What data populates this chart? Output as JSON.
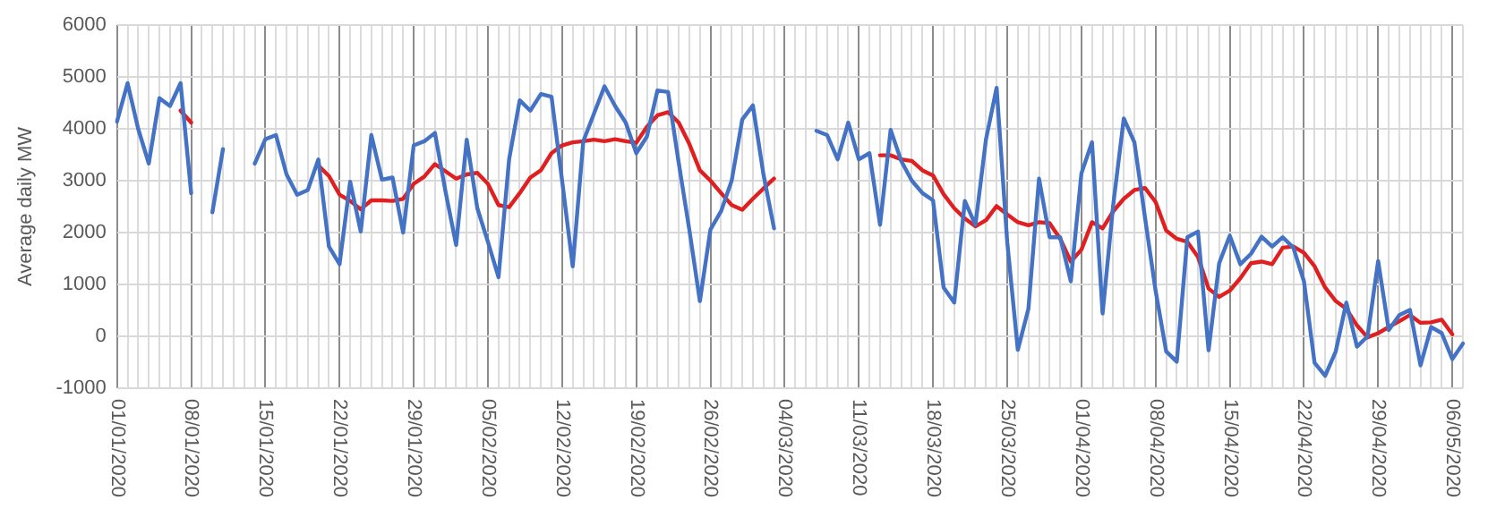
{
  "chart_data": {
    "type": "line",
    "ylabel": "Average daily MW",
    "ylim": [
      -1000,
      6000
    ],
    "yticks": [
      -1000,
      0,
      1000,
      2000,
      3000,
      4000,
      5000,
      6000
    ],
    "grid": true,
    "categories": [
      "01/01/2020",
      null,
      null,
      null,
      null,
      null,
      null,
      "08/01/2020",
      null,
      null,
      null,
      null,
      null,
      null,
      "15/01/2020",
      null,
      null,
      null,
      null,
      null,
      null,
      "22/01/2020",
      null,
      null,
      null,
      null,
      null,
      null,
      "29/01/2020",
      null,
      null,
      null,
      null,
      null,
      null,
      "05/02/2020",
      null,
      null,
      null,
      null,
      null,
      null,
      "12/02/2020",
      null,
      null,
      null,
      null,
      null,
      null,
      "19/02/2020",
      null,
      null,
      null,
      null,
      null,
      null,
      "26/02/2020",
      null,
      null,
      null,
      null,
      null,
      null,
      "04/03/2020",
      null,
      null,
      null,
      null,
      null,
      null,
      "11/03/2020",
      null,
      null,
      null,
      null,
      null,
      null,
      "18/03/2020",
      null,
      null,
      null,
      null,
      null,
      null,
      "25/03/2020",
      null,
      null,
      null,
      null,
      null,
      null,
      "01/04/2020",
      null,
      null,
      null,
      null,
      null,
      null,
      "08/04/2020",
      null,
      null,
      null,
      null,
      null,
      null,
      "15/04/2020",
      null,
      null,
      null,
      null,
      null,
      null,
      "22/04/2020",
      null,
      null,
      null,
      null,
      null,
      null,
      "29/04/2020",
      null,
      null,
      null,
      null,
      null,
      null,
      "06/05/2020",
      null
    ],
    "series": [
      {
        "color": "#4472c4",
        "values": [
          4140,
          4880,
          4000,
          3330,
          4590,
          4440,
          4880,
          2760,
          null,
          2390,
          3610,
          null,
          null,
          3330,
          3800,
          3880,
          3120,
          2730,
          2820,
          3410,
          1730,
          1390,
          2980,
          2020,
          3880,
          3020,
          3060,
          2000,
          3680,
          3760,
          3920,
          2790,
          1760,
          3790,
          2470,
          1820,
          1140,
          3410,
          4550,
          4350,
          4670,
          4620,
          3000,
          1350,
          3760,
          4290,
          4820,
          4440,
          4120,
          3530,
          3850,
          4740,
          4710,
          3350,
          2060,
          680,
          2060,
          2410,
          3000,
          4180,
          4450,
          3120,
          2080,
          null,
          null,
          null,
          3960,
          3880,
          3410,
          4120,
          3410,
          3530,
          2150,
          3980,
          3380,
          3000,
          2760,
          2620,
          940,
          650,
          2610,
          2150,
          3800,
          4790,
          1820,
          -260,
          530,
          3040,
          1910,
          1910,
          1060,
          3140,
          3740,
          440,
          2530,
          4200,
          3740,
          2290,
          880,
          -290,
          -490,
          1910,
          2020,
          -270,
          1410,
          1940,
          1390,
          1590,
          1920,
          1730,
          1910,
          1710,
          1060,
          -510,
          -760,
          -290,
          650,
          -200,
          0,
          1450,
          120,
          410,
          510,
          -560,
          180,
          60,
          -440,
          -140
        ]
      },
      {
        "color": "#e02020",
        "values": [
          null,
          null,
          null,
          null,
          null,
          null,
          4350,
          4120,
          null,
          null,
          null,
          null,
          null,
          null,
          null,
          null,
          null,
          null,
          null,
          3290,
          3090,
          2730,
          2610,
          2450,
          2620,
          2620,
          2610,
          2650,
          2940,
          3080,
          3320,
          3180,
          3040,
          3120,
          3150,
          2940,
          2530,
          2490,
          2760,
          3060,
          3200,
          3530,
          3680,
          3740,
          3760,
          3790,
          3760,
          3800,
          3760,
          3730,
          4040,
          4260,
          4320,
          4120,
          3710,
          3200,
          3000,
          2760,
          2530,
          2440,
          2650,
          2850,
          3040,
          null,
          null,
          null,
          null,
          null,
          null,
          null,
          null,
          null,
          3490,
          3490,
          3410,
          3380,
          3200,
          3100,
          2740,
          2470,
          2270,
          2120,
          2240,
          2510,
          2350,
          2200,
          2140,
          2200,
          2180,
          1880,
          1440,
          1670,
          2200,
          2080,
          2410,
          2650,
          2820,
          2860,
          2590,
          2040,
          1880,
          1820,
          1530,
          920,
          760,
          880,
          1120,
          1410,
          1440,
          1390,
          1710,
          1730,
          1610,
          1350,
          940,
          680,
          530,
          210,
          -20,
          60,
          180,
          290,
          410,
          260,
          270,
          320,
          40,
          null
        ]
      }
    ]
  }
}
